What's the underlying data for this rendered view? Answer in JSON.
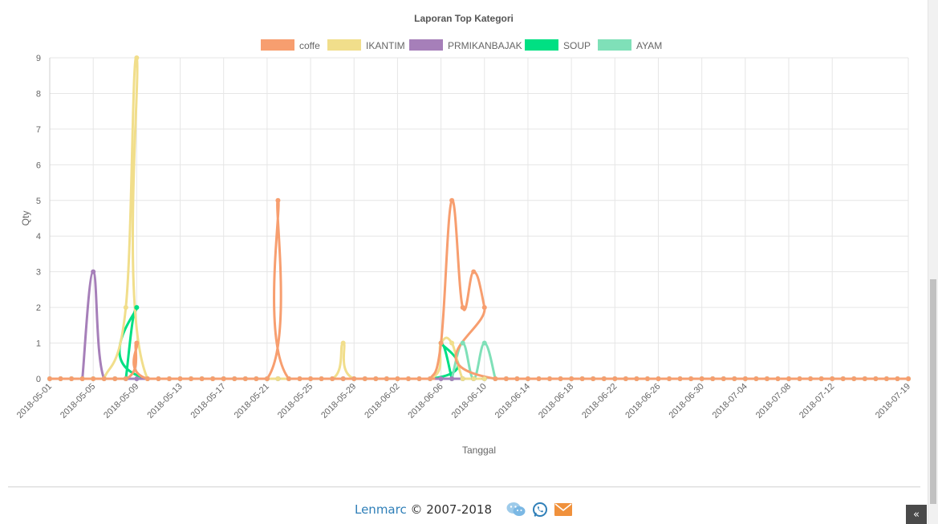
{
  "chart_data": {
    "type": "line",
    "title": "Laporan Top Kategori",
    "xlabel": "Tanggal",
    "ylabel": "Qty",
    "ylim": [
      0,
      9
    ],
    "yticks": [
      0,
      1,
      2,
      3,
      4,
      5,
      6,
      7,
      8,
      9
    ],
    "xrange": [
      "2018-05-01",
      "2018-07-19"
    ],
    "xtick_labels": [
      "2018-05-01",
      "2018-05-05",
      "2018-05-09",
      "2018-05-13",
      "2018-05-17",
      "2018-05-21",
      "2018-05-25",
      "2018-05-29",
      "2018-06-02",
      "2018-06-06",
      "2018-06-10",
      "2018-06-14",
      "2018-06-18",
      "2018-06-22",
      "2018-06-26",
      "2018-06-30",
      "2018-07-04",
      "2018-07-08",
      "2018-07-12",
      "2018-07-19"
    ],
    "grid": true,
    "legend_position": "top-center",
    "smooth": true,
    "series": [
      {
        "name": "SOUP",
        "color": "#00e083",
        "points": [
          [
            "2018-05-08",
            0
          ],
          [
            "2018-05-09",
            2
          ],
          [
            "2018-05-10",
            0
          ],
          [
            "2018-06-05",
            0
          ],
          [
            "2018-06-06",
            1
          ],
          [
            "2018-06-07",
            0
          ]
        ]
      },
      {
        "name": "AYAM",
        "color": "#7fe0b8",
        "points": [
          [
            "2018-06-07",
            0
          ],
          [
            "2018-06-08",
            1
          ],
          [
            "2018-06-09",
            0
          ],
          [
            "2018-06-10",
            1
          ],
          [
            "2018-06-11",
            0
          ]
        ]
      },
      {
        "name": "PRMIKANBAJAK",
        "color": "#a67fb9",
        "points": [
          [
            "2018-05-04",
            0
          ],
          [
            "2018-05-05",
            3
          ],
          [
            "2018-05-06",
            0
          ],
          [
            "2018-05-09",
            0
          ],
          [
            "2018-06-05",
            0
          ],
          [
            "2018-06-07",
            0
          ]
        ]
      },
      {
        "name": "IKANTIM",
        "color": "#f1de8b",
        "points": [
          [
            "2018-05-06",
            0
          ],
          [
            "2018-05-08",
            2
          ],
          [
            "2018-05-09",
            9
          ],
          [
            "2018-05-10",
            0
          ],
          [
            "2018-05-22",
            0
          ],
          [
            "2018-05-27",
            0
          ],
          [
            "2018-05-28",
            1
          ],
          [
            "2018-05-29",
            0
          ],
          [
            "2018-06-05",
            0
          ],
          [
            "2018-06-06",
            1
          ],
          [
            "2018-06-07",
            1
          ],
          [
            "2018-06-08",
            0
          ],
          [
            "2018-06-09",
            0
          ],
          [
            "2018-06-10",
            0
          ]
        ]
      },
      {
        "name": "coffe",
        "color": "#f79e6f",
        "points": [
          [
            "2018-05-01",
            0
          ],
          [
            "2018-05-08",
            0
          ],
          [
            "2018-05-09",
            1
          ],
          [
            "2018-05-10",
            0
          ],
          [
            "2018-05-21",
            0
          ],
          [
            "2018-05-22",
            5
          ],
          [
            "2018-05-23",
            0
          ],
          [
            "2018-06-04",
            0
          ],
          [
            "2018-06-05",
            0
          ],
          [
            "2018-06-06",
            1
          ],
          [
            "2018-06-07",
            5
          ],
          [
            "2018-06-08",
            2
          ],
          [
            "2018-06-09",
            3
          ],
          [
            "2018-06-10",
            2
          ],
          [
            "2018-06-11",
            0
          ],
          [
            "2018-07-19",
            0
          ]
        ]
      }
    ]
  },
  "footer": {
    "brand": "Lenmarc",
    "copyright": "© 2007-2018"
  },
  "icons": {
    "chat": "wechat-icon",
    "whatsapp": "whatsapp-icon",
    "mail": "mail-icon",
    "scroll_top": "scroll-top-icon"
  }
}
